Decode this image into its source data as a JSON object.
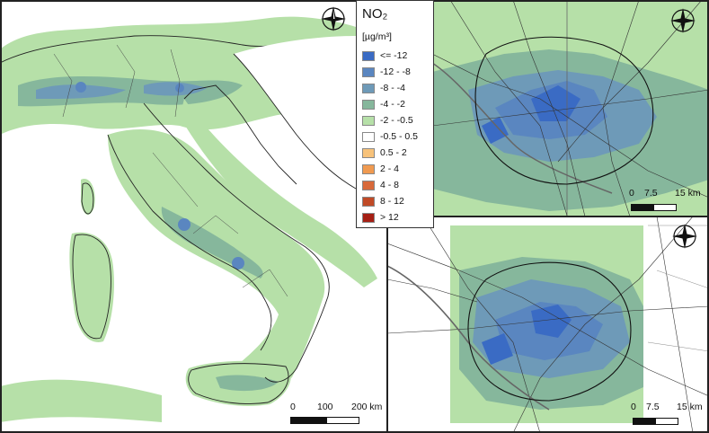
{
  "legend": {
    "title": "NO₂",
    "unit": "[µg/m³]",
    "classes": [
      {
        "label": "<= -12",
        "color": "#3a6bc4"
      },
      {
        "label": "-12 - -8",
        "color": "#5a86c0"
      },
      {
        "label": "-8 - -4",
        "color": "#6e9ab8"
      },
      {
        "label": "-4 - -2",
        "color": "#86b79c"
      },
      {
        "label": "-2 - -0.5",
        "color": "#b6e0a8"
      },
      {
        "label": "-0.5 - 0.5",
        "color": "#ffffff"
      },
      {
        "label": "0.5 - 2",
        "color": "#f7c27a"
      },
      {
        "label": "2 - 4",
        "color": "#f09a50"
      },
      {
        "label": "4 - 8",
        "color": "#d8693a"
      },
      {
        "label": "8 - 12",
        "color": "#c04a26"
      },
      {
        "label": "> 12",
        "color": "#a51f14"
      }
    ]
  },
  "maps": {
    "italy": {
      "scale_labels": [
        "0",
        "100",
        "200 km"
      ]
    },
    "rome_top": {
      "scale_labels": [
        "0",
        "7.5",
        "15 km"
      ]
    },
    "rome_bottom": {
      "scale_labels": [
        "0",
        "7.5",
        "15 km"
      ]
    }
  },
  "colors": {
    "light_green": "#b6e0a8",
    "mid_green": "#86b79c",
    "teal": "#6e9ab8",
    "blue": "#5a86c0",
    "dark_blue": "#3a6bc4"
  },
  "icons": {
    "north_arrow": "compass-rose-icon"
  }
}
